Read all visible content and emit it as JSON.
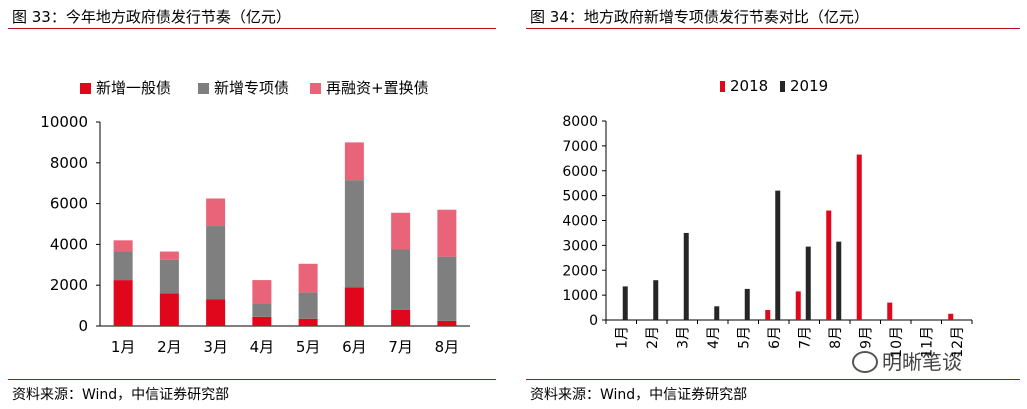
{
  "left_panel": {
    "title": "图 33：今年地方政府债发行节奏（亿元）",
    "source": "资料来源：Wind，中信证券研究部"
  },
  "right_panel": {
    "title": "图 34：地方政府新增专项债发行节奏对比（亿元）",
    "source": "资料来源：Wind，中信证券研究部"
  },
  "watermark": {
    "text": "明晰笔谈",
    "icon": "wechat-bubble-icon"
  },
  "colors": {
    "red": "#e0061c",
    "gray": "#7f7f7f",
    "pink": "#ea6479",
    "black": "#262626",
    "rule": "#b40e1f"
  },
  "chart_data": [
    {
      "type": "bar",
      "stacked": true,
      "categories": [
        "1月",
        "2月",
        "3月",
        "4月",
        "5月",
        "6月",
        "7月",
        "8月"
      ],
      "series": [
        {
          "name": "新增一般债",
          "color": "#e0061c",
          "values": [
            2250,
            1600,
            1300,
            450,
            350,
            1900,
            800,
            250
          ]
        },
        {
          "name": "新增专项债",
          "color": "#7f7f7f",
          "values": [
            1400,
            1650,
            3600,
            650,
            1300,
            5250,
            2950,
            3150
          ]
        },
        {
          "name": "再融资+置换债",
          "color": "#ea6479",
          "values": [
            550,
            400,
            1350,
            1150,
            1400,
            1850,
            1800,
            2300
          ]
        }
      ],
      "yticks": [
        "0",
        "2000",
        "4000",
        "6000",
        "8000",
        "10000"
      ],
      "ylim": [
        0,
        10000
      ],
      "legend_position": "top"
    },
    {
      "type": "bar",
      "stacked": false,
      "categories": [
        "1月",
        "2月",
        "3月",
        "4月",
        "5月",
        "6月",
        "7月",
        "8月",
        "9月",
        "10月",
        "11月",
        "12月"
      ],
      "series": [
        {
          "name": "2018",
          "color": "#e0061c",
          "values": [
            0,
            0,
            0,
            0,
            0,
            400,
            1150,
            4400,
            6650,
            700,
            0,
            250
          ]
        },
        {
          "name": "2019",
          "color": "#262626",
          "values": [
            1350,
            1600,
            3500,
            550,
            1250,
            5200,
            2950,
            3150,
            0,
            0,
            0,
            0
          ]
        }
      ],
      "yticks": [
        "0",
        "1000",
        "2000",
        "3000",
        "4000",
        "5000",
        "6000",
        "7000",
        "8000"
      ],
      "ylim": [
        0,
        8000
      ],
      "legend_position": "top"
    }
  ]
}
